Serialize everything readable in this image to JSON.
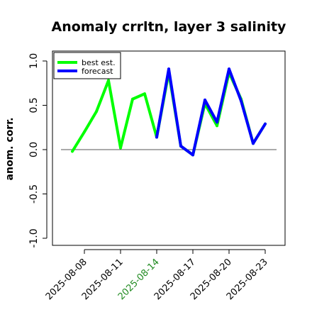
{
  "chart_data": {
    "type": "line",
    "title": "Anomaly crrltn, layer 3 salinity",
    "xlabel": "",
    "ylabel": "anom. corr.",
    "ylim": [
      -1.0,
      1.0
    ],
    "yticks": [
      "-1.0",
      "-0.5",
      "0.0",
      "0.5",
      "1.0"
    ],
    "xticks": [
      {
        "label": "2025-08-08",
        "color": "#000000"
      },
      {
        "label": "2025-08-11",
        "color": "#000000"
      },
      {
        "label": "2025-08-14",
        "color": "#228B22"
      },
      {
        "label": "2025-08-17",
        "color": "#000000"
      },
      {
        "label": "2025-08-20",
        "color": "#000000"
      },
      {
        "label": "2025-08-23",
        "color": "#000000"
      }
    ],
    "x": [
      "2025-08-07",
      "2025-08-08",
      "2025-08-09",
      "2025-08-10",
      "2025-08-11",
      "2025-08-12",
      "2025-08-13",
      "2025-08-14",
      "2025-08-15",
      "2025-08-16",
      "2025-08-17",
      "2025-08-18",
      "2025-08-19",
      "2025-08-20",
      "2025-08-21",
      "2025-08-22",
      "2025-08-23"
    ],
    "reference_line": 0.0,
    "grid": false,
    "legend_position": "top-left",
    "series": [
      {
        "name": "best est.",
        "color": "#00ff00",
        "values": [
          -0.02,
          0.2,
          0.43,
          0.78,
          0.02,
          0.57,
          0.63,
          0.14,
          0.87,
          0.04,
          -0.06,
          0.52,
          0.27,
          0.87,
          0.57,
          0.07,
          0.29
        ]
      },
      {
        "name": "forecast",
        "color": "#0000ff",
        "values": [
          null,
          null,
          null,
          null,
          null,
          null,
          null,
          0.14,
          0.91,
          0.04,
          -0.06,
          0.56,
          0.31,
          0.91,
          0.55,
          0.07,
          0.29
        ]
      }
    ]
  }
}
